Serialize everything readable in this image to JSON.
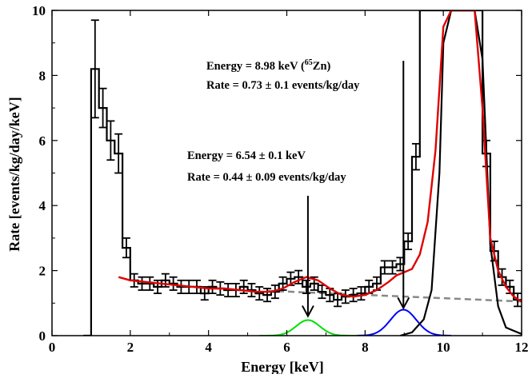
{
  "chart_data": {
    "type": "line",
    "title": "",
    "xlabel": "Energy [keV]",
    "ylabel": "Rate [events/kg/day/keV]",
    "xlim": [
      0,
      12
    ],
    "ylim": [
      0,
      10
    ],
    "x_ticks": [
      0,
      2,
      4,
      6,
      8,
      10,
      12
    ],
    "y_ticks": [
      0,
      2,
      4,
      6,
      8,
      10
    ],
    "grid": false,
    "legend": null,
    "colors": {
      "data": "#000000",
      "fit": "#e00000",
      "background": "#888888",
      "peak_zn65": "#0000ff",
      "peak_6_54": "#00e000",
      "peak_large": "#000000"
    },
    "series": [
      {
        "kind": "histogram-with-errorbars",
        "bin_width": 0.2,
        "x": [
          0.9,
          1.1,
          1.3,
          1.5,
          1.7,
          1.9,
          2.1,
          2.3,
          2.5,
          2.7,
          2.9,
          3.1,
          3.3,
          3.5,
          3.7,
          3.9,
          4.1,
          4.3,
          4.5,
          4.7,
          4.9,
          5.1,
          5.3,
          5.5,
          5.7,
          5.9,
          6.1,
          6.3,
          6.5,
          6.7,
          6.9,
          7.1,
          7.3,
          7.5,
          7.7,
          7.9,
          8.1,
          8.3,
          8.5,
          8.7,
          8.9,
          9.1,
          9.3,
          9.5,
          9.7,
          9.9,
          10.1,
          10.3,
          10.5,
          10.7,
          10.9,
          11.1,
          11.3,
          11.5,
          11.7,
          11.9
        ],
        "values": [
          0,
          8.2,
          7.0,
          6.0,
          5.6,
          2.7,
          1.7,
          1.6,
          1.6,
          1.5,
          1.7,
          1.6,
          1.5,
          1.5,
          1.5,
          1.3,
          1.5,
          1.45,
          1.4,
          1.4,
          1.5,
          1.4,
          1.3,
          1.25,
          1.35,
          1.6,
          1.75,
          1.8,
          1.5,
          1.6,
          1.35,
          1.25,
          1.1,
          1.2,
          1.25,
          1.3,
          1.5,
          1.6,
          2.1,
          2.1,
          2.2,
          2.9,
          5.5,
          10.0,
          10.0,
          10.0,
          10.0,
          10.0,
          10.0,
          10.0,
          10.0,
          5.6,
          2.6,
          1.8,
          1.5,
          1.1
        ],
        "errors": [
          0,
          1.5,
          0.6,
          0.6,
          0.6,
          0.3,
          0.2,
          0.2,
          0.2,
          0.2,
          0.2,
          0.2,
          0.2,
          0.2,
          0.2,
          0.2,
          0.2,
          0.2,
          0.2,
          0.2,
          0.2,
          0.2,
          0.2,
          0.2,
          0.2,
          0.2,
          0.2,
          0.2,
          0.2,
          0.2,
          0.2,
          0.2,
          0.2,
          0.2,
          0.2,
          0.2,
          0.2,
          0.2,
          0.2,
          0.2,
          0.2,
          0.25,
          0.4,
          0,
          0,
          0,
          0,
          0,
          0,
          0,
          0,
          0.4,
          0.3,
          0.25,
          0.2,
          0.2
        ]
      },
      {
        "kind": "fit-curve",
        "x": [
          1.7,
          2.0,
          2.4,
          2.8,
          3.2,
          3.6,
          4.0,
          4.4,
          4.8,
          5.2,
          5.6,
          5.9,
          6.2,
          6.5,
          6.8,
          7.1,
          7.4,
          7.7,
          8.0,
          8.3,
          8.6,
          8.8,
          9.0,
          9.2,
          9.4,
          9.6,
          9.8,
          10.0,
          10.2,
          10.4,
          10.6,
          10.8,
          11.0,
          11.2,
          11.4,
          11.6,
          11.8,
          12.0
        ],
        "values": [
          1.8,
          1.7,
          1.65,
          1.6,
          1.55,
          1.5,
          1.45,
          1.45,
          1.4,
          1.35,
          1.35,
          1.45,
          1.65,
          1.8,
          1.7,
          1.45,
          1.25,
          1.2,
          1.25,
          1.4,
          1.65,
          1.85,
          1.95,
          2.05,
          2.5,
          3.5,
          5.7,
          9.5,
          10.0,
          10.0,
          10.0,
          10.0,
          7.0,
          3.0,
          2.0,
          1.5,
          1.2,
          1.05
        ]
      },
      {
        "kind": "background",
        "x": [
          5.5,
          12.0
        ],
        "values": [
          1.38,
          1.05
        ]
      },
      {
        "kind": "gaussian-peak",
        "center": 6.54,
        "sigma": 0.3,
        "amplitude": 0.48,
        "xrange": [
          5.3,
          7.8
        ]
      },
      {
        "kind": "gaussian-peak",
        "center": 8.98,
        "sigma": 0.33,
        "amplitude": 0.8,
        "xrange": [
          7.8,
          10.2
        ]
      },
      {
        "kind": "large-peak",
        "x": [
          8.9,
          9.2,
          9.5,
          9.7,
          9.9,
          10.0,
          10.2,
          10.4,
          10.6,
          10.8,
          11.0,
          11.2,
          11.4,
          11.6,
          12.0
        ],
        "values": [
          0.0,
          0.1,
          0.5,
          1.4,
          5.0,
          9.0,
          10.0,
          10.0,
          10.0,
          10.0,
          8.5,
          2.8,
          0.9,
          0.25,
          0.05
        ]
      }
    ],
    "annotations": [
      {
        "line1": "Energy = 8.98 keV (",
        "sup": "65",
        "line1_tail": "Zn)",
        "line2": "Rate = 0.73 ± 0.1 events/kg/day",
        "arrow_x": 8.98,
        "arrow_from_y": 8.45,
        "arrow_to_y": 0.85
      },
      {
        "line1": "Energy = 6.54 ± 0.1 keV",
        "line2": "Rate = 0.44 ± 0.09 events/kg/day",
        "arrow_x": 6.54,
        "arrow_from_y": 4.3,
        "arrow_to_y": 0.6
      }
    ]
  }
}
